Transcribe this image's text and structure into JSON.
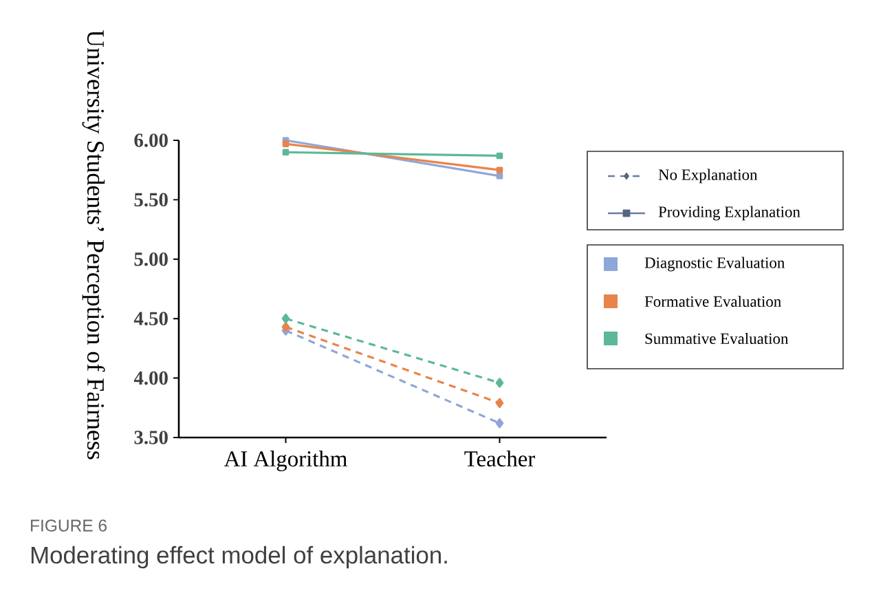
{
  "chart_data": {
    "type": "line",
    "title": "FIGURE 6",
    "subtitle": "Moderating effect model of explanation.",
    "ylabel": "University Students’ Perception of Fairness",
    "categories": [
      "AI Algorithm",
      "Teacher"
    ],
    "series": [
      {
        "color": "#8fa6d8",
        "values": [
          4.4,
          3.62
        ],
        "line_style": "dashed",
        "marker": "diamond"
      },
      {
        "color": "#e8844a",
        "values": [
          4.43,
          3.79
        ],
        "line_style": "dashed",
        "marker": "diamond"
      },
      {
        "color": "#5cb89a",
        "values": [
          4.5,
          3.96
        ],
        "line_style": "dashed",
        "marker": "diamond"
      },
      {
        "color": "#8fa6d8",
        "values": [
          6.0,
          5.7
        ],
        "line_style": "solid",
        "marker": "square"
      },
      {
        "color": "#e8844a",
        "values": [
          5.97,
          5.75
        ],
        "line_style": "solid",
        "marker": "square"
      },
      {
        "color": "#5cb89a",
        "values": [
          5.9,
          5.87
        ],
        "line_style": "solid",
        "marker": "square"
      }
    ],
    "ylim": [
      3.5,
      6.0
    ],
    "yticks": [
      {
        "value": 3.5,
        "label": "3.50"
      },
      {
        "value": 4.0,
        "label": "4.00"
      },
      {
        "value": 4.5,
        "label": "4.50"
      },
      {
        "value": 5.0,
        "label": "5.00"
      },
      {
        "value": 5.5,
        "label": "5.50"
      },
      {
        "value": 6.0,
        "label": "6.00"
      }
    ],
    "grid": false,
    "annotations": [
      "No Explanation",
      "Providing Explanation",
      "Diagnostic Evaluation",
      "Formative Evaluation",
      "Summative Evaluation"
    ]
  }
}
